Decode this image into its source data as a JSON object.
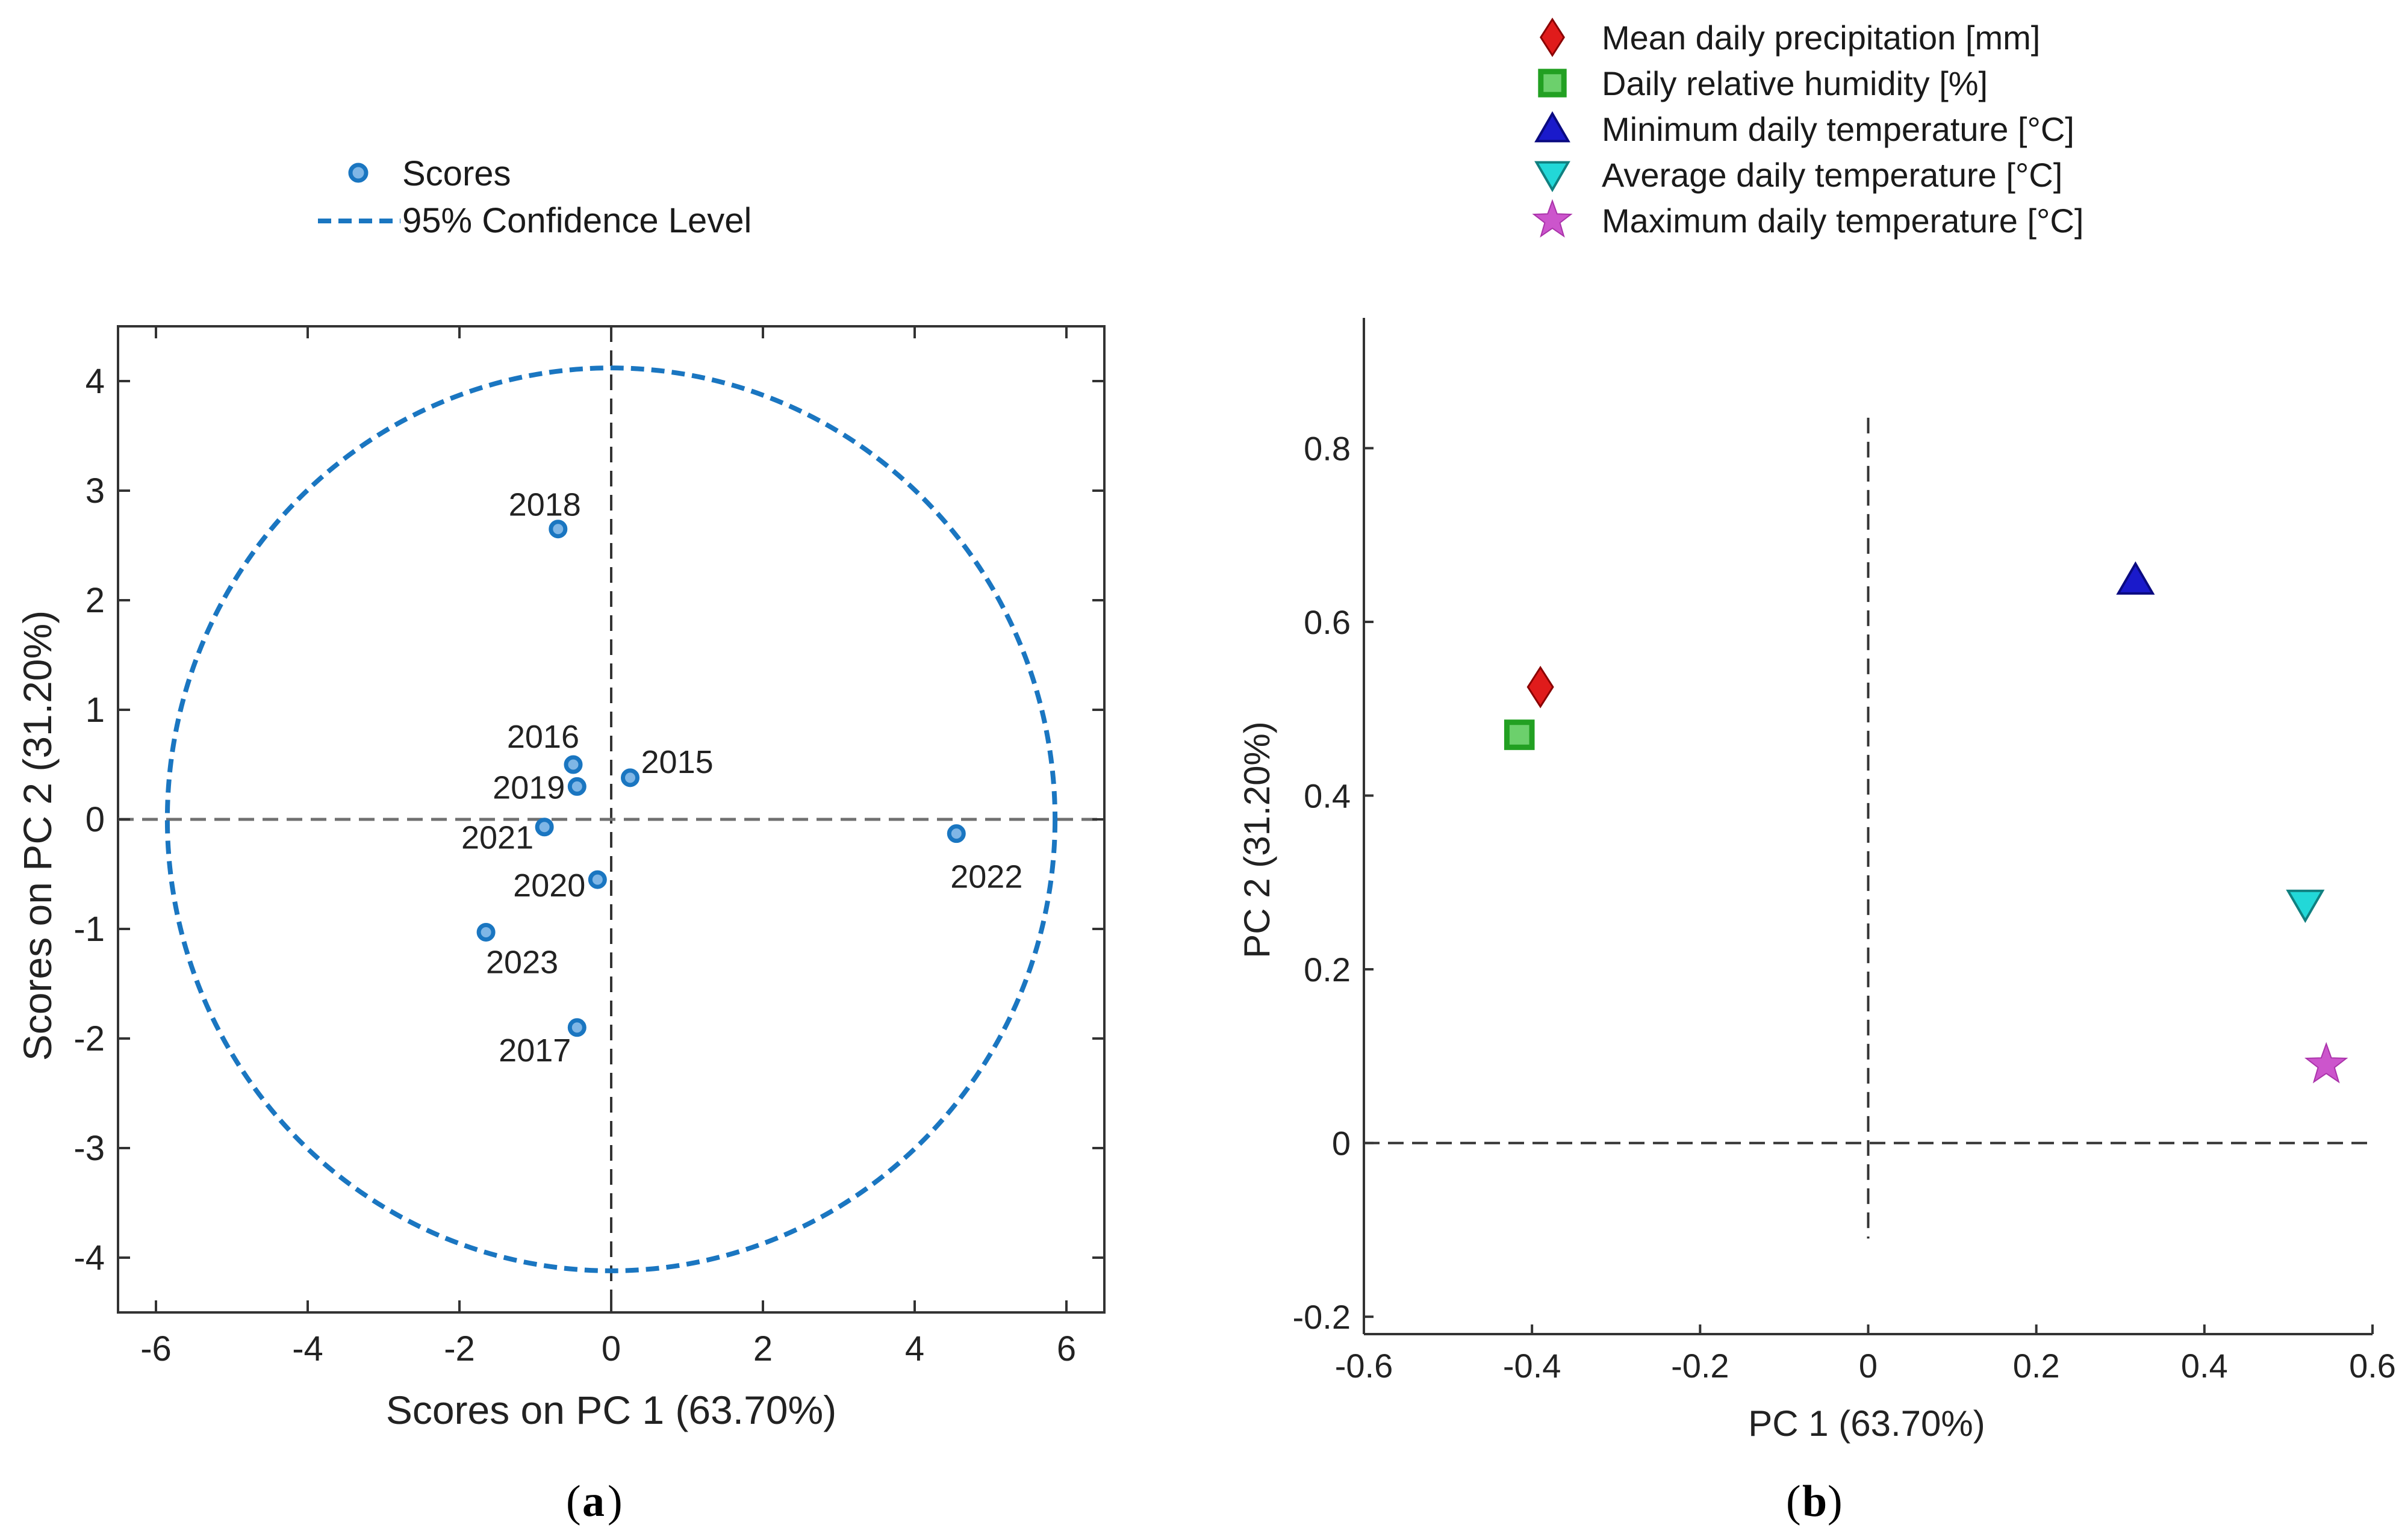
{
  "colors": {
    "scores": "#1a76c1",
    "scores_fill": "#7fb6e6",
    "frame": "#333333",
    "zero_line_a": "#707070",
    "zero_line_b": "#333333"
  },
  "chart_data": [
    {
      "type": "scatter",
      "panel_label": "a",
      "xlabel": "Scores on PC 1 (63.70%)",
      "ylabel": "Scores on PC 2 (31.20%)",
      "xlim": [
        -6.5,
        6.5
      ],
      "ylim": [
        -4.5,
        4.5
      ],
      "xticks": [
        "-6",
        "-4",
        "-2",
        "0",
        "2",
        "4",
        "6"
      ],
      "yticks": [
        "4",
        "3",
        "2",
        "1",
        "0",
        "-1",
        "-2",
        "-3",
        "-4"
      ],
      "legend": {
        "placement": "top-center",
        "entries": [
          {
            "label": "Scores",
            "marker": "circle"
          },
          {
            "label": "95% Confidence Level",
            "marker": "dashed-line"
          }
        ]
      },
      "confidence_ellipse": {
        "center": [
          0,
          0
        ],
        "radius_x": 5.85,
        "radius_y": 4.12
      },
      "points": [
        {
          "label": "2015",
          "x": 0.25,
          "y": 0.38
        },
        {
          "label": "2016",
          "x": -0.5,
          "y": 0.5
        },
        {
          "label": "2017",
          "x": -0.45,
          "y": -1.9
        },
        {
          "label": "2018",
          "x": -0.7,
          "y": 2.65
        },
        {
          "label": "2019",
          "x": -0.45,
          "y": 0.3
        },
        {
          "label": "2020",
          "x": -0.18,
          "y": -0.55
        },
        {
          "label": "2021",
          "x": -0.88,
          "y": -0.07
        },
        {
          "label": "2022",
          "x": 4.55,
          "y": -0.13
        },
        {
          "label": "2023",
          "x": -1.65,
          "y": -1.03
        }
      ]
    },
    {
      "type": "scatter",
      "panel_label": "b",
      "xlabel": "PC 1 (63.70%)",
      "ylabel": "PC 2 (31.20%)",
      "xlim": [
        -0.6,
        0.6
      ],
      "ylim": [
        -0.22,
        0.95
      ],
      "xticks": [
        "-0.6",
        "-0.4",
        "-0.2",
        "0",
        "0.2",
        "0.4",
        "0.6"
      ],
      "yticks": [
        "0.8",
        "0.6",
        "0.4",
        "0.2",
        "0",
        "-0.2"
      ],
      "legend": {
        "placement": "top",
        "entries": [
          {
            "label": "Mean daily precipitation [mm]",
            "marker": "diamond",
            "color": "#e01b1b"
          },
          {
            "label": "Daily relative humidity [%]",
            "marker": "square",
            "color": "#22a022"
          },
          {
            "label": "Minimum daily temperature [°C]",
            "marker": "triangle-up",
            "color": "#1a1acb"
          },
          {
            "label": "Average daily temperature [°C]",
            "marker": "triangle-down",
            "color": "#22d8d8"
          },
          {
            "label": "Maximum daily temperature [°C]",
            "marker": "star",
            "color": "#cc55cc"
          }
        ]
      },
      "points": [
        {
          "label": "Mean daily precipitation [mm]",
          "x": -0.39,
          "y": 0.525
        },
        {
          "label": "Daily relative humidity [%]",
          "x": -0.415,
          "y": 0.47
        },
        {
          "label": "Minimum daily temperature [°C]",
          "x": 0.318,
          "y": 0.648
        },
        {
          "label": "Average daily temperature [°C]",
          "x": 0.52,
          "y": 0.275
        },
        {
          "label": "Maximum daily temperature [°C]",
          "x": 0.545,
          "y": 0.09
        }
      ]
    }
  ]
}
